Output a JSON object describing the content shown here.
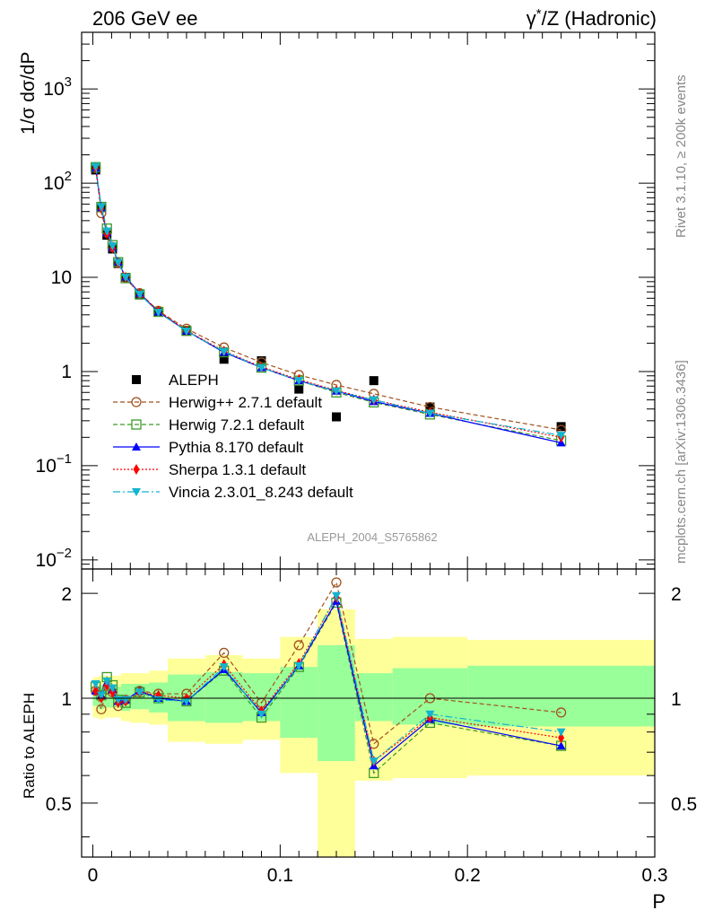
{
  "header": {
    "left": "206 GeV ee",
    "right_gamma": "γ",
    "right_star": "*",
    "right_rest": "/Z (Hadronic)"
  },
  "side": {
    "rivet": "Rivet 3.1.10, ≥ 200k events",
    "mcplots": "mcplots.cern.ch [arXiv:1306.3436]"
  },
  "watermark": "ALEPH_2004_S5765862",
  "chart_data": {
    "type": "line",
    "title": "206 GeV ee",
    "xlabel": "P",
    "ylabel": "1/σ dσ/dP",
    "ratio_ylabel": "Ratio to ALEPH",
    "xlim": [
      -0.006,
      0.3
    ],
    "ylim": [
      0.008,
      4000
    ],
    "ylog": true,
    "ratio_ylim": [
      0.35,
      2.35
    ],
    "ratio_ylog": true,
    "xticks": [
      {
        "v": 0,
        "label": "0"
      },
      {
        "v": 0.1,
        "label": "0.1"
      },
      {
        "v": 0.2,
        "label": "0.2"
      },
      {
        "v": 0.3,
        "label": "0.3"
      }
    ],
    "yticks": [
      {
        "v": 0.01,
        "base": "10",
        "exp": "−2"
      },
      {
        "v": 0.1,
        "base": "10",
        "exp": "−1"
      },
      {
        "v": 1,
        "base": "1",
        "exp": ""
      },
      {
        "v": 10,
        "base": "10",
        "exp": ""
      },
      {
        "v": 100,
        "base": "10",
        "exp": "2"
      },
      {
        "v": 1000,
        "base": "10",
        "exp": "3"
      }
    ],
    "ratio_yticks": [
      {
        "v": 0.5,
        "label": "0.5"
      },
      {
        "v": 1,
        "label": "1"
      },
      {
        "v": 2,
        "label": "2"
      }
    ],
    "x": [
      0.0015,
      0.0045,
      0.0075,
      0.0105,
      0.0135,
      0.0175,
      0.025,
      0.035,
      0.05,
      0.07,
      0.09,
      0.11,
      0.13,
      0.15,
      0.18,
      0.25
    ],
    "bin_edges": [
      0,
      0.003,
      0.006,
      0.009,
      0.012,
      0.015,
      0.02,
      0.03,
      0.04,
      0.06,
      0.08,
      0.1,
      0.12,
      0.14,
      0.16,
      0.2,
      0.3
    ],
    "band_inner": [
      [
        0.95,
        1.07
      ],
      [
        0.93,
        1.09
      ],
      [
        0.94,
        1.08
      ],
      [
        0.94,
        1.08
      ],
      [
        0.94,
        1.08
      ],
      [
        0.92,
        1.1
      ],
      [
        0.93,
        1.1
      ],
      [
        0.91,
        1.11
      ],
      [
        0.86,
        1.17
      ],
      [
        0.85,
        1.19
      ],
      [
        0.86,
        1.18
      ],
      [
        0.77,
        1.23
      ],
      [
        0.66,
        1.42
      ],
      [
        0.86,
        1.18
      ],
      [
        0.84,
        1.22
      ],
      [
        0.83,
        1.24
      ]
    ],
    "band_outer": [
      [
        0.88,
        1.15
      ],
      [
        0.87,
        1.16
      ],
      [
        0.88,
        1.16
      ],
      [
        0.88,
        1.16
      ],
      [
        0.88,
        1.16
      ],
      [
        0.86,
        1.18
      ],
      [
        0.85,
        1.18
      ],
      [
        0.84,
        1.2
      ],
      [
        0.75,
        1.3
      ],
      [
        0.74,
        1.33
      ],
      [
        0.76,
        1.3
      ],
      [
        0.61,
        1.5
      ],
      [
        0.35,
        1.8
      ],
      [
        0.58,
        1.48
      ],
      [
        0.59,
        1.5
      ],
      [
        0.6,
        1.47
      ]
    ],
    "series": [
      {
        "name": "ALEPH",
        "marker": "square",
        "color": "#000000",
        "dash": "",
        "values": [
          138,
          55,
          28,
          20,
          14,
          10,
          6.5,
          4.3,
          2.7,
          1.35,
          1.3,
          0.65,
          0.33,
          0.8,
          0.42,
          0.26
        ],
        "ratio": [
          1,
          1,
          1,
          1,
          1,
          1,
          1,
          1,
          1,
          1,
          1,
          1,
          1,
          1,
          1,
          1
        ]
      },
      {
        "name": "Herwig++ 2.7.1 default",
        "marker": "circle",
        "color": "#a0521d",
        "dash": "5,3",
        "values": [
          145,
          48,
          30,
          21,
          14.2,
          9.9,
          6.8,
          4.4,
          2.85,
          1.8,
          1.25,
          0.92,
          0.72,
          0.58,
          0.42,
          0.24
        ],
        "ratio": [
          1.05,
          0.93,
          1.06,
          1.04,
          0.95,
          0.99,
          1.05,
          1.03,
          1.03,
          1.35,
          0.97,
          1.42,
          2.15,
          0.74,
          1.0,
          0.91
        ]
      },
      {
        "name": "Herwig 7.2.1 default",
        "marker": "open-square",
        "color": "#3c9a28",
        "dash": "5,3",
        "values": [
          148,
          56,
          33,
          22,
          14.5,
          9.8,
          6.6,
          4.3,
          2.7,
          1.6,
          1.1,
          0.8,
          0.6,
          0.47,
          0.35,
          0.185
        ],
        "ratio": [
          1.08,
          1.02,
          1.15,
          1.09,
          0.99,
          0.97,
          1.04,
          1.0,
          0.98,
          1.2,
          0.88,
          1.23,
          1.88,
          0.61,
          0.85,
          0.73
        ]
      },
      {
        "name": "Pythia 8.170 default",
        "marker": "triangle-up",
        "color": "#0000ff",
        "dash": "",
        "values": [
          145,
          55,
          30,
          21,
          14.6,
          10.1,
          6.8,
          4.3,
          2.7,
          1.6,
          1.1,
          0.8,
          0.62,
          0.48,
          0.36,
          0.175
        ],
        "ratio": [
          1.05,
          1.02,
          1.11,
          1.06,
          0.98,
          0.99,
          1.05,
          1.0,
          0.98,
          1.21,
          0.91,
          1.24,
          1.9,
          0.64,
          0.87,
          0.73
        ]
      },
      {
        "name": "Sherpa 1.3.1 default",
        "marker": "diamond",
        "color": "#ff0000",
        "dash": "2,2",
        "values": [
          145,
          54,
          29,
          20.5,
          14.2,
          10.0,
          6.7,
          4.4,
          2.72,
          1.65,
          1.12,
          0.82,
          0.63,
          0.5,
          0.37,
          0.2
        ],
        "ratio": [
          1.05,
          1.0,
          1.09,
          1.04,
          0.97,
          0.98,
          1.04,
          1.02,
          1.0,
          1.25,
          0.92,
          1.26,
          1.95,
          0.66,
          0.88,
          0.77
        ]
      },
      {
        "name": "Vincia 2.3.01_8.243 default",
        "marker": "triangle-down",
        "color": "#12b4d0",
        "dash": "8,3,2,3",
        "values": [
          150,
          56,
          31,
          21.5,
          14.4,
          10.0,
          6.6,
          4.25,
          2.68,
          1.63,
          1.1,
          0.8,
          0.62,
          0.5,
          0.36,
          0.21
        ],
        "ratio": [
          1.1,
          1.02,
          1.12,
          1.07,
          0.99,
          0.99,
          1.04,
          0.99,
          0.98,
          1.23,
          0.9,
          1.24,
          1.97,
          0.66,
          0.9,
          0.8
        ]
      }
    ]
  }
}
